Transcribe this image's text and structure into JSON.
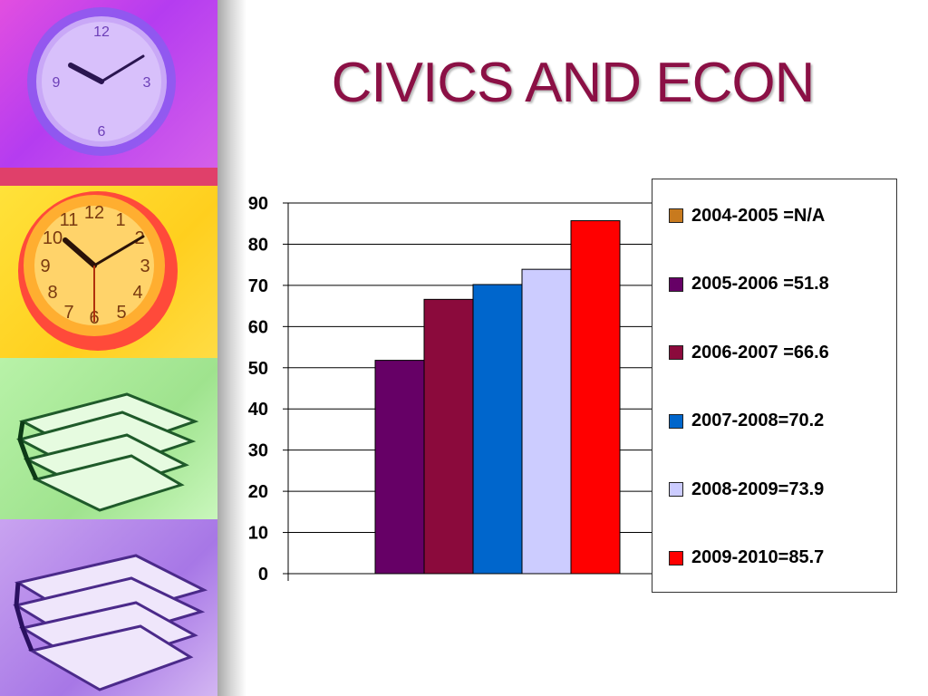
{
  "slide": {
    "title": "CIVICS AND ECON",
    "title_color": "#8b1045"
  },
  "decor": {
    "panels": [
      "clock-icon-purple",
      "clock-icon-orange",
      "books-icon-green",
      "books-icon-purple"
    ],
    "clock_numbers": [
      "12",
      "1",
      "2",
      "3",
      "4",
      "5",
      "6",
      "7",
      "8",
      "9",
      "10",
      "11"
    ]
  },
  "chart_data": {
    "type": "bar",
    "title": "",
    "xlabel": "",
    "ylabel": "",
    "ylim": [
      0,
      90
    ],
    "yticks": [
      "0",
      "10",
      "20",
      "30",
      "40",
      "50",
      "60",
      "70",
      "80",
      "90"
    ],
    "grid": true,
    "legend_position": "right",
    "series": [
      {
        "name": "2004-2005 =N/A",
        "value": null,
        "color": "#c87a1e"
      },
      {
        "name": "2005-2006 =51.8",
        "value": 51.8,
        "color": "#660066"
      },
      {
        "name": "2006-2007 =66.6",
        "value": 66.6,
        "color": "#8b0a3c"
      },
      {
        "name": "2007-2008=70.2",
        "value": 70.2,
        "color": "#0066cc"
      },
      {
        "name": "2008-2009=73.9",
        "value": 73.9,
        "color": "#ccccff"
      },
      {
        "name": "2009-2010=85.7",
        "value": 85.7,
        "color": "#ff0000"
      }
    ]
  }
}
